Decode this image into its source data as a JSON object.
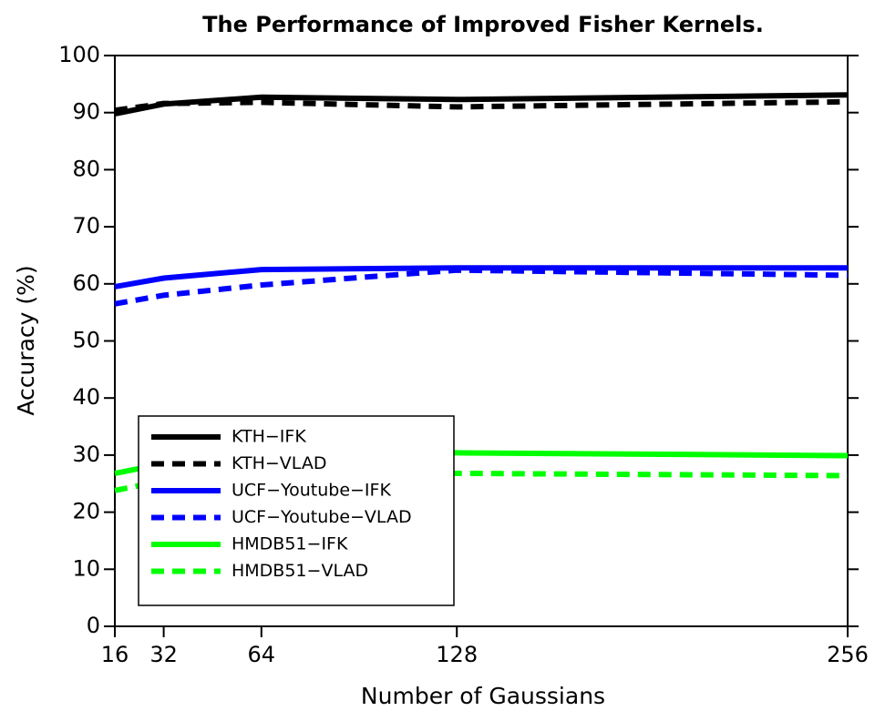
{
  "chart_data": {
    "type": "line",
    "title": "The Performance of Improved Fisher Kernels.",
    "xlabel": "Number of Gaussians",
    "ylabel": "Accuracy (%)",
    "x": [
      16,
      32,
      64,
      128,
      256
    ],
    "xlim": [
      16,
      256
    ],
    "xticks": [
      16,
      32,
      64,
      128,
      256
    ],
    "ylim": [
      0,
      100
    ],
    "yticks": [
      0,
      10,
      20,
      30,
      40,
      50,
      60,
      70,
      80,
      90,
      100
    ],
    "legend": "lower left",
    "series": [
      {
        "name": "KTH−IFK",
        "color": "#000000",
        "dashed": false,
        "values": [
          89.8,
          91.5,
          92.7,
          92.3,
          93.1
        ]
      },
      {
        "name": "KTH−VLAD",
        "color": "#000000",
        "dashed": true,
        "values": [
          90.4,
          91.6,
          91.8,
          91.0,
          91.9
        ]
      },
      {
        "name": "UCF−Youtube−IFK",
        "color": "#0000ff",
        "dashed": false,
        "values": [
          59.5,
          61.0,
          62.5,
          62.8,
          62.8
        ]
      },
      {
        "name": "UCF−Youtube−VLAD",
        "color": "#0000ff",
        "dashed": true,
        "values": [
          56.5,
          58.0,
          59.8,
          62.4,
          61.5
        ]
      },
      {
        "name": "HMDB51−IFK",
        "color": "#00ff00",
        "dashed": false,
        "values": [
          26.8,
          28.5,
          30.0,
          30.4,
          29.9
        ]
      },
      {
        "name": "HMDB51−VLAD",
        "color": "#00ff00",
        "dashed": true,
        "values": [
          23.8,
          25.5,
          26.5,
          26.8,
          26.4
        ]
      }
    ]
  }
}
